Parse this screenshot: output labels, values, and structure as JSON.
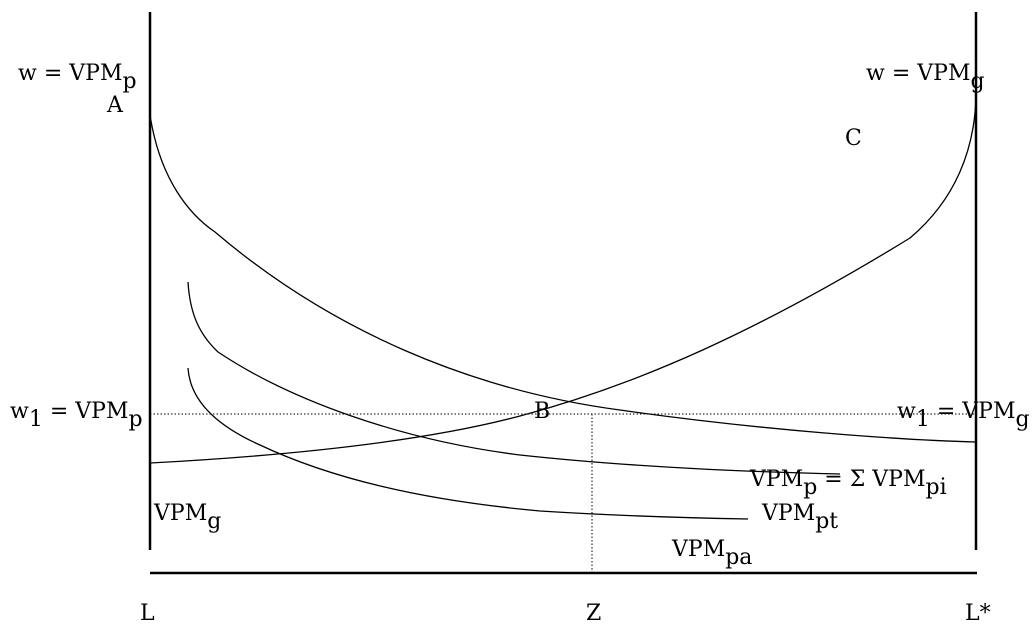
{
  "labels": {
    "top_left": {
      "main": "w = VPM",
      "sub": "p"
    },
    "top_right": {
      "main": "w = VPM",
      "sub": "g"
    },
    "point_a": "A",
    "point_c": "C",
    "mid_left": {
      "main": "w",
      "sub1": "1",
      "rest": " = VPM",
      "sub2": "p"
    },
    "mid_right": {
      "main": "w",
      "sub1": "1",
      "rest": " = VPM",
      "sub2": "g"
    },
    "point_b": "B",
    "vpm_g": {
      "main": "VPM",
      "sub": "g"
    },
    "vpm_p_sum": {
      "main": "VPM",
      "sub1": "p",
      "rest": " = Σ VPM",
      "sub2": "pi"
    },
    "vpm_pt": {
      "main": "VPM",
      "sub": "pt"
    },
    "vpm_pa": {
      "main": "VPM",
      "sub": "pa"
    },
    "axis_left": "L",
    "axis_mid": "Z",
    "axis_right": "L*"
  },
  "colors": {
    "ink": "#000000",
    "background": "#ffffff"
  }
}
